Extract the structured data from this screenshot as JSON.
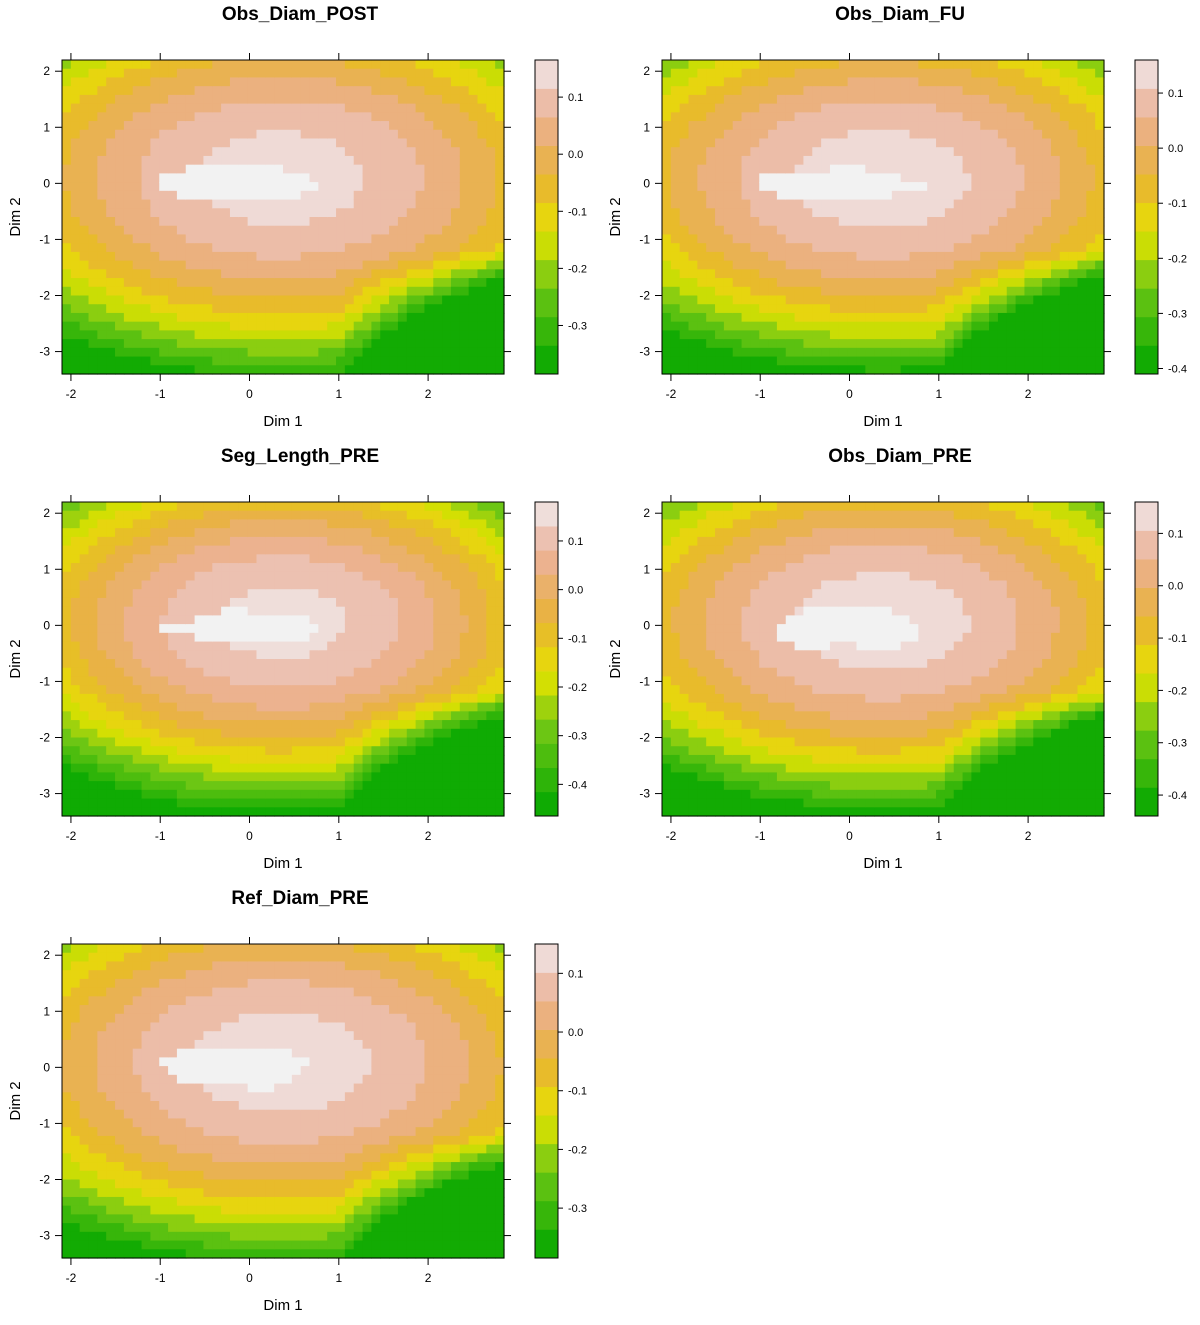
{
  "chart_data": [
    {
      "type": "heatmap",
      "title": "Obs_Diam_POST",
      "xlabel": "Dim 1",
      "ylabel": "Dim 2",
      "xlim": [
        -2.1,
        2.85
      ],
      "ylim": [
        -3.4,
        2.2
      ],
      "xticks": [
        -2,
        -1,
        0,
        1,
        2
      ],
      "yticks": [
        -3,
        -2,
        -1,
        0,
        1,
        2
      ],
      "colorbar": {
        "min": -0.385,
        "max": 0.165,
        "ticks": [
          0.1,
          0.0,
          -0.1,
          -0.2,
          -0.3
        ],
        "steps": 11
      },
      "field": {
        "cx": 0.35,
        "cy": -0.05,
        "sx": 2.5,
        "sy": 2.2,
        "peak": 0.14,
        "drop": 0.34,
        "corner_bump": 0.05,
        "sw_raise": 0.0,
        "tilt": 0.035
      },
      "white_patch": {
        "cx": -0.1,
        "cy": 0.0,
        "rx": 0.95,
        "ry": 0.38
      },
      "grid": false
    },
    {
      "type": "heatmap",
      "title": "Obs_Diam_FU",
      "xlabel": "Dim 1",
      "ylabel": "Dim 2",
      "xlim": [
        -2.1,
        2.85
      ],
      "ylim": [
        -3.4,
        2.2
      ],
      "xticks": [
        -2,
        -1,
        0,
        1,
        2
      ],
      "yticks": [
        -3,
        -2,
        -1,
        0,
        1,
        2
      ],
      "colorbar": {
        "min": -0.41,
        "max": 0.16,
        "ticks": [
          0.1,
          0.0,
          -0.1,
          -0.2,
          -0.3,
          -0.4
        ],
        "steps": 11
      },
      "field": {
        "cx": 0.35,
        "cy": -0.05,
        "sx": 2.5,
        "sy": 2.2,
        "peak": 0.14,
        "drop": 0.38,
        "corner_bump": 0.05,
        "sw_raise": 0.0,
        "tilt": 0.035
      },
      "white_patch": {
        "cx": -0.1,
        "cy": 0.0,
        "rx": 0.9,
        "ry": 0.3
      },
      "grid": false
    },
    {
      "type": "heatmap",
      "title": "Seg_Length_PRE",
      "xlabel": "Dim 1",
      "ylabel": "Dim 2",
      "xlim": [
        -2.1,
        2.85
      ],
      "ylim": [
        -3.4,
        2.2
      ],
      "xticks": [
        -2,
        -1,
        0,
        1,
        2
      ],
      "yticks": [
        -3,
        -2,
        -1,
        0,
        1,
        2
      ],
      "colorbar": {
        "min": -0.465,
        "max": 0.18,
        "ticks": [
          0.1,
          0.0,
          -0.1,
          -0.2,
          -0.3,
          -0.4
        ],
        "steps": 13
      },
      "field": {
        "cx": 0.35,
        "cy": -0.05,
        "sx": 2.5,
        "sy": 2.2,
        "peak": 0.15,
        "drop": 0.45,
        "corner_bump": 0.05,
        "sw_raise": 0.02,
        "tilt": 0.035
      },
      "white_patch": {
        "cx": -0.05,
        "cy": 0.0,
        "rx": 0.95,
        "ry": 0.28
      },
      "grid": false
    },
    {
      "type": "heatmap",
      "title": "Obs_Diam_PRE",
      "xlabel": "Dim 1",
      "ylabel": "Dim 2",
      "xlim": [
        -2.1,
        2.85
      ],
      "ylim": [
        -3.4,
        2.2
      ],
      "xticks": [
        -2,
        -1,
        0,
        1,
        2
      ],
      "yticks": [
        -3,
        -2,
        -1,
        0,
        1,
        2
      ],
      "colorbar": {
        "min": -0.44,
        "max": 0.16,
        "ticks": [
          0.1,
          0.0,
          -0.1,
          -0.2,
          -0.3,
          -0.4
        ],
        "steps": 11
      },
      "field": {
        "cx": 0.35,
        "cy": -0.05,
        "sx": 2.5,
        "sy": 2.2,
        "peak": 0.14,
        "drop": 0.42,
        "corner_bump": 0.05,
        "sw_raise": 0.0,
        "tilt": 0.035
      },
      "white_patch": {
        "cx": 0.0,
        "cy": -0.05,
        "rx": 1.0,
        "ry": 0.35
      },
      "grid": false
    },
    {
      "type": "heatmap",
      "title": "Ref_Diam_PRE",
      "xlabel": "Dim 1",
      "ylabel": "Dim 2",
      "xlim": [
        -2.1,
        2.85
      ],
      "ylim": [
        -3.4,
        2.2
      ],
      "xticks": [
        -2,
        -1,
        0,
        1,
        2
      ],
      "yticks": [
        -3,
        -2,
        -1,
        0,
        1,
        2
      ],
      "colorbar": {
        "min": -0.385,
        "max": 0.15,
        "ticks": [
          0.1,
          0.0,
          -0.1,
          -0.2,
          -0.3
        ],
        "steps": 11
      },
      "field": {
        "cx": 0.35,
        "cy": -0.05,
        "sx": 2.5,
        "sy": 2.2,
        "peak": 0.13,
        "drop": 0.33,
        "corner_bump": 0.05,
        "sw_raise": 0.0,
        "tilt": 0.035
      },
      "white_patch": {
        "cx": -0.1,
        "cy": 0.0,
        "rx": 0.95,
        "ry": 0.38
      },
      "grid": false
    }
  ]
}
